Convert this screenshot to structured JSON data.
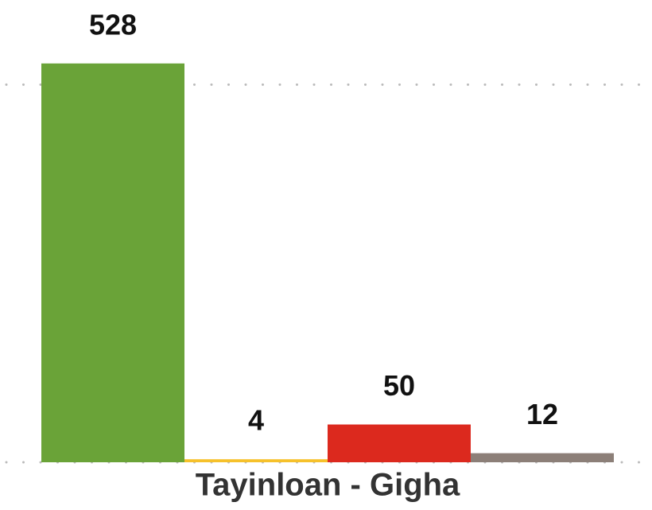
{
  "chart_data": {
    "type": "bar",
    "categories": [
      "Tayinloan - Gigha"
    ],
    "series": [
      {
        "color": "#6aa338",
        "values": [
          528
        ]
      },
      {
        "color": "#f6c12b",
        "values": [
          4
        ]
      },
      {
        "color": "#dc291e",
        "values": [
          50
        ]
      },
      {
        "color": "#8c7f78",
        "values": [
          12
        ]
      }
    ],
    "ylim": [
      0,
      612
    ],
    "yticks": [
      0,
      500
    ],
    "grid": true
  }
}
